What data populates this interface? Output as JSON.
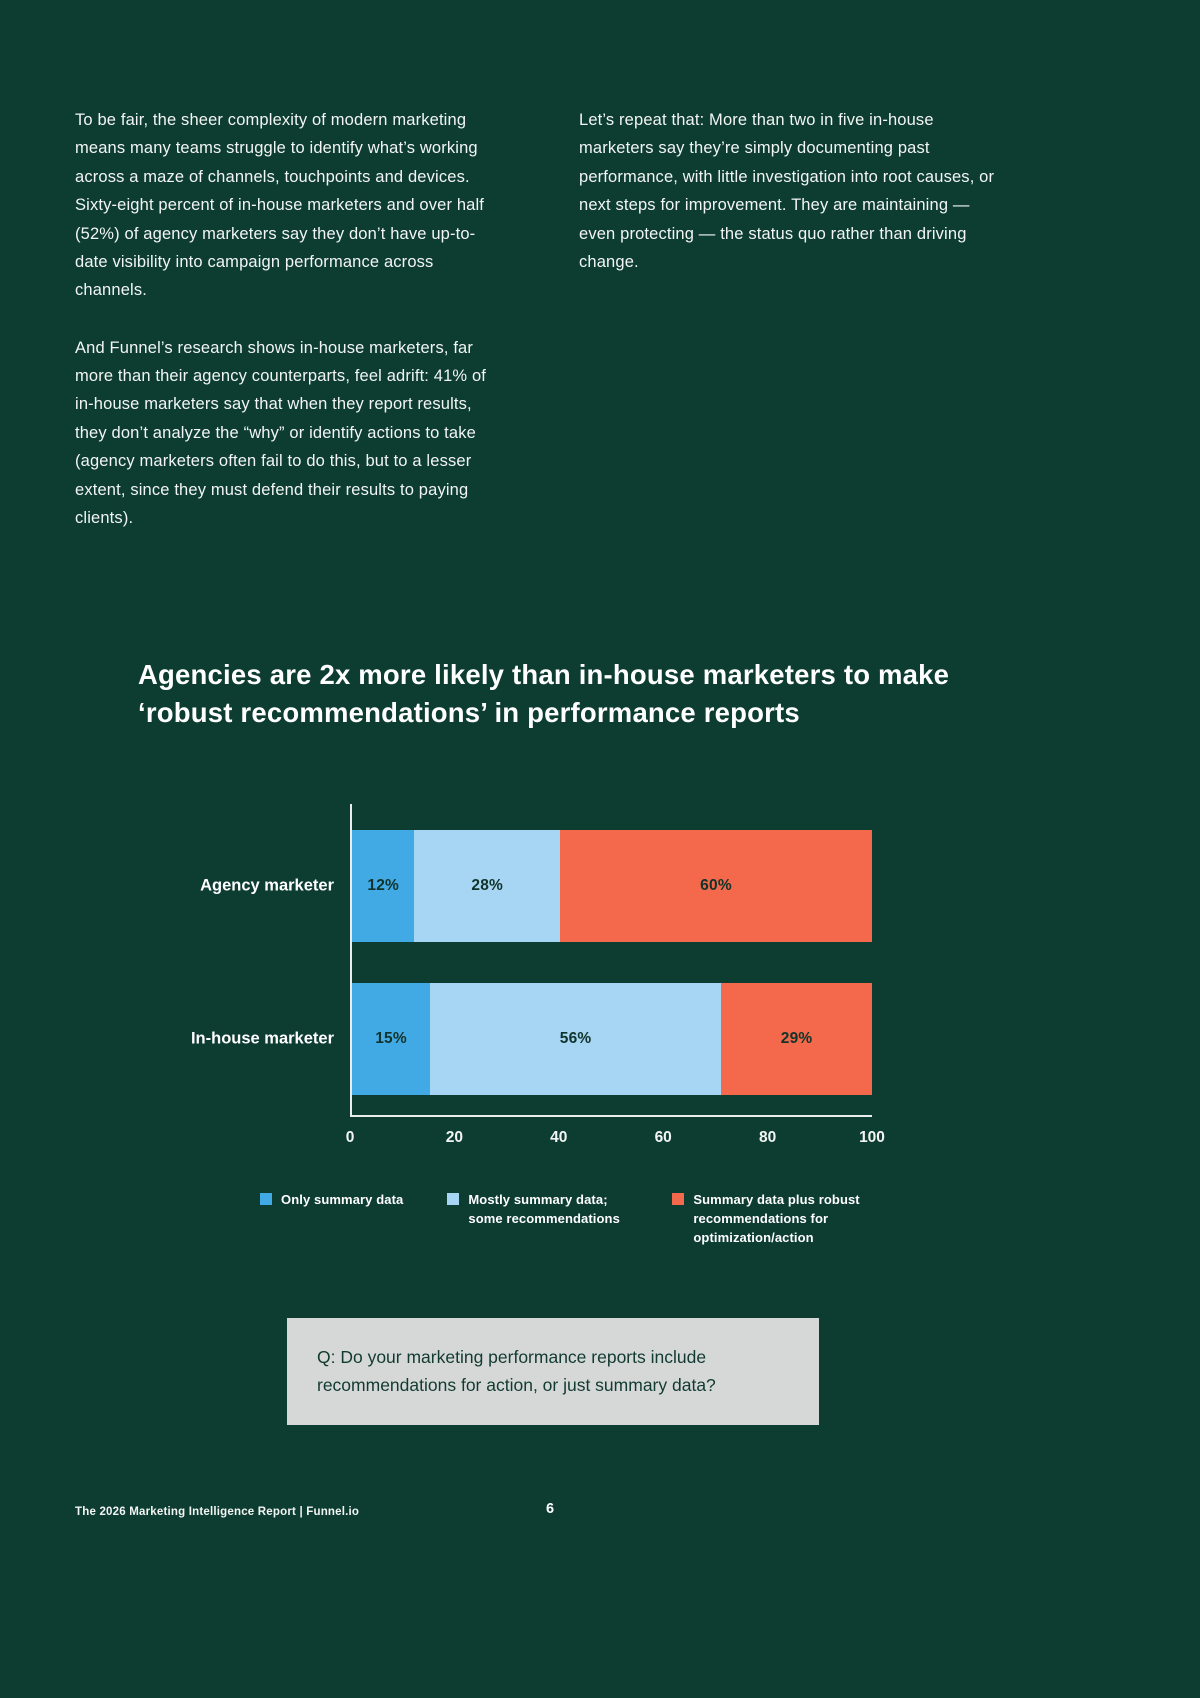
{
  "page": {
    "footer_left": "The 2026 Marketing Intelligence Report   |   Funnel.io",
    "page_number": "6"
  },
  "intro": {
    "left_paragraph_1": "To be fair, the sheer complexity of modern marketing means many teams struggle to identify what’s working across a maze of channels, touchpoints and devices. Sixty-eight percent of in-house marketers and over half (52%) of agency marketers say they don’t have up-to-date visibility into campaign performance across channels.",
    "left_paragraph_2": "And Funnel’s research shows in-house marketers, far more than their agency counterparts, feel adrift: 41% of in-house marketers say that when they report results, they don’t analyze the “why” or identify actions to take (agency marketers often fail to do this, but to a lesser extent, since they must defend their results to paying clients).",
    "right_paragraph_1": "Let’s repeat that: More than two in five in-house marketers say they’re simply documenting past performance, with little investigation into root causes, or next steps for improvement. They are maintaining — even protecting — the status quo rather than driving change."
  },
  "chart_data": {
    "type": "bar",
    "orientation": "horizontal",
    "stacked": true,
    "title": "Agencies are 2x more likely than in-house marketers to make ‘robust recommendations’ in performance reports",
    "categories": [
      "Agency marketer",
      "In-house marketer"
    ],
    "series": [
      {
        "name": "Only summary data",
        "color": "#41aae4",
        "values": [
          12,
          15
        ]
      },
      {
        "name": "Mostly summary data; some recommendations",
        "color": "#a7d5f4",
        "values": [
          28,
          56
        ]
      },
      {
        "name": "Summary data plus robust recommendations for optimization/action",
        "color": "#f4694b",
        "values": [
          60,
          29
        ]
      }
    ],
    "value_suffix": "%",
    "xlim": [
      0,
      100
    ],
    "x_ticks": [
      "0",
      "20",
      "40",
      "60",
      "80",
      "100"
    ],
    "legend_position": "bottom",
    "grid": false
  },
  "question_box": {
    "text": "Q: Do your marketing performance reports include recommendations for action, or just summary data?"
  }
}
